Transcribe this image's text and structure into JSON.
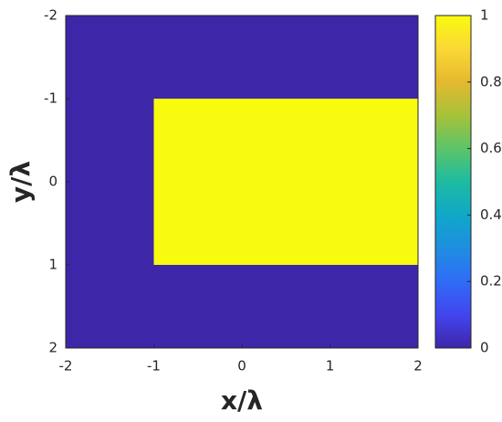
{
  "chart_data": {
    "type": "heatmap",
    "xlabel": "x/λ",
    "ylabel": "y/λ",
    "x_edges": [
      -2,
      -1,
      0,
      1,
      2
    ],
    "y_edges": [
      -2,
      -1,
      0,
      1,
      2
    ],
    "values": [
      [
        0,
        0,
        0,
        0
      ],
      [
        0,
        1,
        1,
        1
      ],
      [
        0,
        1,
        1,
        1
      ],
      [
        0,
        0,
        0,
        0
      ]
    ],
    "xlim": [
      -2,
      2
    ],
    "xticks": [
      -2,
      -1,
      0,
      1,
      2
    ],
    "ylim": [
      -2,
      2
    ],
    "yticks": [
      -2,
      -1,
      0,
      1,
      2
    ],
    "ydir": "reverse",
    "clim": [
      0,
      1
    ],
    "cticks": [
      0,
      0.2,
      0.4,
      0.6,
      0.8,
      1
    ],
    "colormap": [
      "#3e26a8",
      "#4245ee",
      "#2f6cf6",
      "#1e8ee0",
      "#0fa8c8",
      "#1ebba0",
      "#5cc468",
      "#a6c239",
      "#e5b92f",
      "#fad835",
      "#f9fb0e"
    ],
    "colorbar": true
  }
}
